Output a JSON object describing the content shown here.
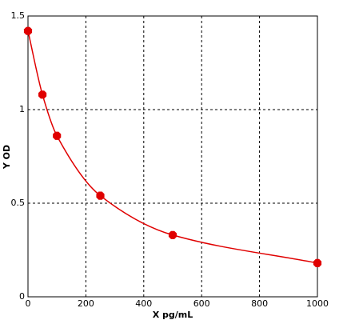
{
  "chart_data": {
    "type": "scatter",
    "x_label": "X pg/mL",
    "y_label": "Y OD",
    "x": [
      0,
      50,
      100,
      250,
      500,
      1000
    ],
    "values": [
      1.42,
      1.08,
      0.86,
      0.54,
      0.33,
      0.18
    ],
    "color": "#e00000",
    "line": true,
    "xlim": [
      0,
      1000
    ],
    "xticks": [
      0,
      200,
      400,
      600,
      800,
      1000
    ],
    "ylim": [
      0,
      1.5
    ],
    "yticks": [
      0,
      0.5,
      1,
      1.5
    ],
    "grid": true
  }
}
